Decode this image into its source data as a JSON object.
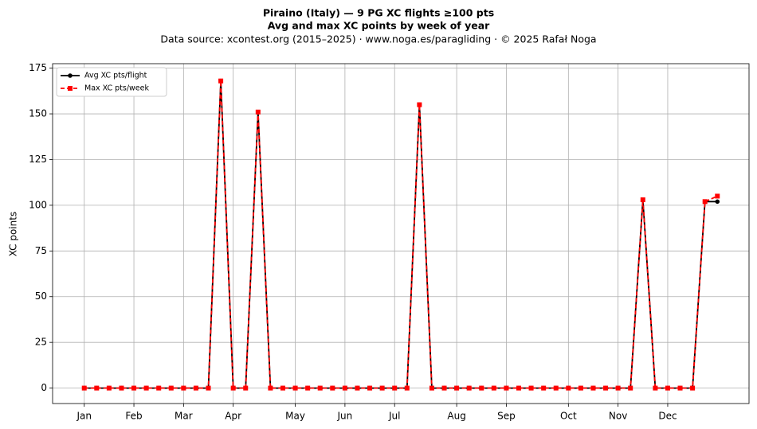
{
  "chart_data": {
    "type": "line",
    "title": "Piraino (Italy)  —  9 PG XC flights ≥100 pts",
    "subtitle": "Avg and max XC points by week of year",
    "caption": "Data source: xcontest.org (2015–2025)  ·  www.noga.es/paragliding  ·  © 2025 Rafał Noga",
    "y_label": "XC points",
    "x": [
      1,
      2,
      3,
      4,
      5,
      6,
      7,
      8,
      9,
      10,
      11,
      12,
      13,
      14,
      15,
      16,
      17,
      18,
      19,
      20,
      21,
      22,
      23,
      24,
      25,
      26,
      27,
      28,
      29,
      30,
      31,
      32,
      33,
      34,
      35,
      36,
      37,
      38,
      39,
      40,
      41,
      42,
      43,
      44,
      45,
      46,
      47,
      48,
      49,
      50,
      51,
      52
    ],
    "series": [
      {
        "name": "Avg XC pts/flight",
        "color": "#000000",
        "marker": "circle",
        "dash": false,
        "values": [
          0,
          0,
          0,
          0,
          0,
          0,
          0,
          0,
          0,
          0,
          0,
          168,
          0,
          0,
          151,
          0,
          0,
          0,
          0,
          0,
          0,
          0,
          0,
          0,
          0,
          0,
          0,
          155,
          0,
          0,
          0,
          0,
          0,
          0,
          0,
          0,
          0,
          0,
          0,
          0,
          0,
          0,
          0,
          0,
          0,
          103,
          0,
          0,
          0,
          0,
          102,
          102
        ]
      },
      {
        "name": "Max XC pts/week",
        "color": "#ff0000",
        "marker": "square",
        "dash": true,
        "values": [
          0,
          0,
          0,
          0,
          0,
          0,
          0,
          0,
          0,
          0,
          0,
          168,
          0,
          0,
          151,
          0,
          0,
          0,
          0,
          0,
          0,
          0,
          0,
          0,
          0,
          0,
          0,
          155,
          0,
          0,
          0,
          0,
          0,
          0,
          0,
          0,
          0,
          0,
          0,
          0,
          0,
          0,
          0,
          0,
          0,
          103,
          0,
          0,
          0,
          0,
          102,
          105
        ]
      }
    ],
    "xlim": [
      -1.55,
      54.55
    ],
    "ylim": [
      -8.45,
      177.45
    ],
    "xticks": [
      {
        "value": 1,
        "label": "Jan"
      },
      {
        "value": 5,
        "label": "Feb"
      },
      {
        "value": 9,
        "label": "Mar"
      },
      {
        "value": 13,
        "label": "Apr"
      },
      {
        "value": 18,
        "label": "May"
      },
      {
        "value": 22,
        "label": "Jun"
      },
      {
        "value": 26,
        "label": "Jul"
      },
      {
        "value": 31,
        "label": "Aug"
      },
      {
        "value": 35,
        "label": "Sep"
      },
      {
        "value": 40,
        "label": "Oct"
      },
      {
        "value": 44,
        "label": "Nov"
      },
      {
        "value": 48,
        "label": "Dec"
      }
    ],
    "yticks": [
      0,
      25,
      50,
      75,
      100,
      125,
      150,
      175
    ],
    "grid": true,
    "legend": "upper-left"
  }
}
